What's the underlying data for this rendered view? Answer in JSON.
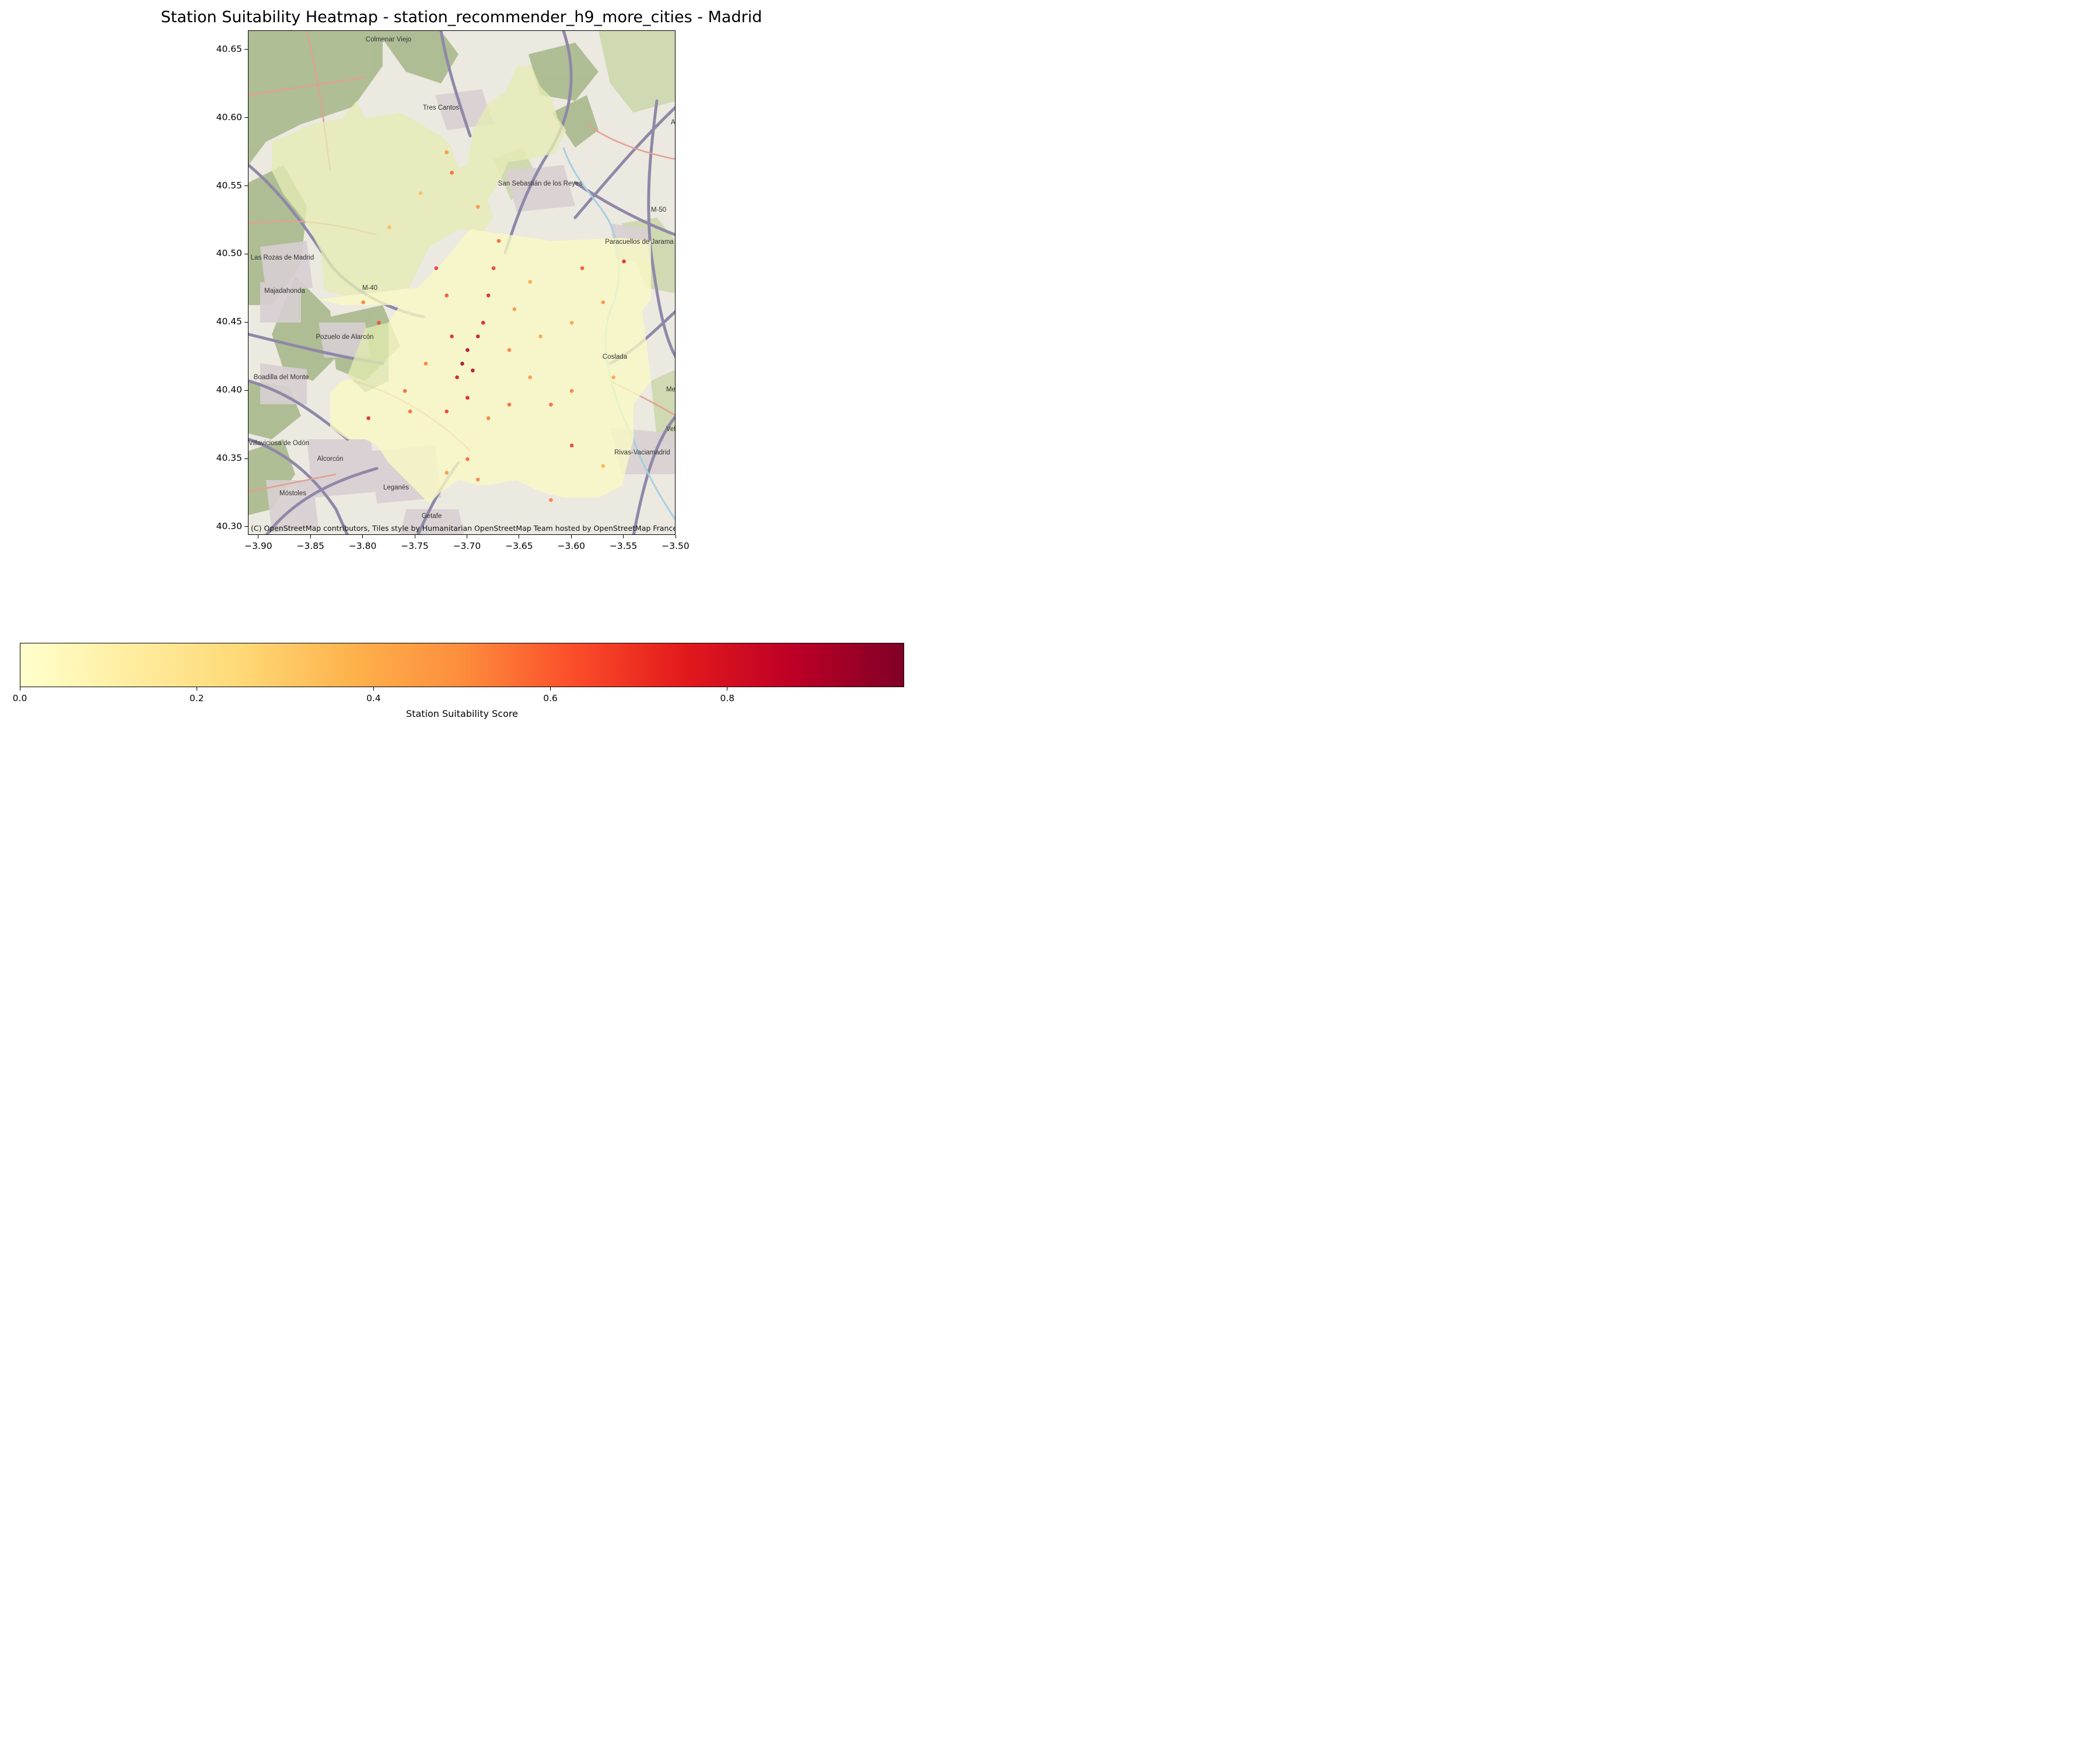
{
  "title": "Station Suitability Heatmap - station_recommender_h9_more_cities - Madrid",
  "map": {
    "attribution": "(C) OpenStreetMap contributors, Tiles style by Humanitarian OpenStreetMap Team hosted by OpenStreetMap France",
    "x_ticks": [
      "−3.90",
      "−3.85",
      "−3.80",
      "−3.75",
      "−3.70",
      "−3.65",
      "−3.60",
      "−3.55",
      "−3.50"
    ],
    "y_ticks": [
      "40.65",
      "40.60",
      "40.55",
      "40.50",
      "40.45",
      "40.40",
      "40.35",
      "40.30"
    ],
    "place_labels": [
      "Colmenar Viejo",
      "Tres Cantos",
      "Alg",
      "San Sebastián de los Reyes",
      "M-50",
      "Paracuellos de Jarama",
      "Las Rozas de Madrid",
      "Majadahonda",
      "M-40",
      "Pozuelo de Alarcón",
      "Coslada",
      "Boadilla del Monte",
      "Me del",
      "Villaviciosa de Odón",
      "Alcorcón",
      "Leganés",
      "Móstoles",
      "Getafe",
      "Rivas-Vaciamadrid",
      "Vel"
    ]
  },
  "chart_data": {
    "type": "heatmap",
    "title": "Station Suitability Heatmap - station_recommender_h9_more_cities - Madrid",
    "x_range": [
      -3.91,
      -3.5
    ],
    "y_range": [
      40.294,
      40.664
    ],
    "colormap": "YlOrRd",
    "colorbar": {
      "label": "Station Suitability Score",
      "range": [
        0.0,
        1.0
      ],
      "ticks": [
        "0.0",
        "0.2",
        "0.4",
        "0.6",
        "0.8"
      ]
    },
    "scored_cells": [
      {
        "lon": -3.705,
        "lat": 40.42,
        "score": 0.95
      },
      {
        "lon": -3.7,
        "lat": 40.43,
        "score": 0.92
      },
      {
        "lon": -3.695,
        "lat": 40.415,
        "score": 0.9
      },
      {
        "lon": -3.69,
        "lat": 40.44,
        "score": 0.85
      },
      {
        "lon": -3.685,
        "lat": 40.45,
        "score": 0.8
      },
      {
        "lon": -3.71,
        "lat": 40.41,
        "score": 0.82
      },
      {
        "lon": -3.715,
        "lat": 40.44,
        "score": 0.75
      },
      {
        "lon": -3.68,
        "lat": 40.47,
        "score": 0.78
      },
      {
        "lon": -3.72,
        "lat": 40.47,
        "score": 0.65
      },
      {
        "lon": -3.675,
        "lat": 40.49,
        "score": 0.7
      },
      {
        "lon": -3.7,
        "lat": 40.395,
        "score": 0.8
      },
      {
        "lon": -3.72,
        "lat": 40.385,
        "score": 0.7
      },
      {
        "lon": -3.755,
        "lat": 40.385,
        "score": 0.6
      },
      {
        "lon": -3.795,
        "lat": 40.38,
        "score": 0.75
      },
      {
        "lon": -3.66,
        "lat": 40.43,
        "score": 0.55
      },
      {
        "lon": -3.64,
        "lat": 40.41,
        "score": 0.5
      },
      {
        "lon": -3.62,
        "lat": 40.39,
        "score": 0.6
      },
      {
        "lon": -3.6,
        "lat": 40.36,
        "score": 0.7
      },
      {
        "lon": -3.6,
        "lat": 40.4,
        "score": 0.55
      },
      {
        "lon": -3.63,
        "lat": 40.44,
        "score": 0.45
      },
      {
        "lon": -3.59,
        "lat": 40.49,
        "score": 0.65
      },
      {
        "lon": -3.55,
        "lat": 40.495,
        "score": 0.75
      },
      {
        "lon": -3.57,
        "lat": 40.465,
        "score": 0.5
      },
      {
        "lon": -3.6,
        "lat": 40.45,
        "score": 0.45
      },
      {
        "lon": -3.7,
        "lat": 40.35,
        "score": 0.6
      },
      {
        "lon": -3.69,
        "lat": 40.335,
        "score": 0.55
      },
      {
        "lon": -3.72,
        "lat": 40.34,
        "score": 0.5
      },
      {
        "lon": -3.785,
        "lat": 40.45,
        "score": 0.65
      },
      {
        "lon": -3.8,
        "lat": 40.465,
        "score": 0.55
      },
      {
        "lon": -3.72,
        "lat": 40.575,
        "score": 0.5
      },
      {
        "lon": -3.715,
        "lat": 40.56,
        "score": 0.6
      },
      {
        "lon": -3.69,
        "lat": 40.535,
        "score": 0.5
      },
      {
        "lon": -3.67,
        "lat": 40.51,
        "score": 0.6
      },
      {
        "lon": -3.62,
        "lat": 40.32,
        "score": 0.55
      },
      {
        "lon": -3.56,
        "lat": 40.41,
        "score": 0.45
      },
      {
        "lon": -3.57,
        "lat": 40.345,
        "score": 0.4
      },
      {
        "lon": -3.73,
        "lat": 40.49,
        "score": 0.7
      },
      {
        "lon": -3.74,
        "lat": 40.42,
        "score": 0.55
      },
      {
        "lon": -3.76,
        "lat": 40.4,
        "score": 0.6
      },
      {
        "lon": -3.68,
        "lat": 40.38,
        "score": 0.55
      },
      {
        "lon": -3.66,
        "lat": 40.39,
        "score": 0.6
      },
      {
        "lon": -3.655,
        "lat": 40.46,
        "score": 0.5
      },
      {
        "lon": -3.64,
        "lat": 40.48,
        "score": 0.45
      },
      {
        "lon": -3.745,
        "lat": 40.545,
        "score": 0.35
      },
      {
        "lon": -3.775,
        "lat": 40.52,
        "score": 0.35
      }
    ]
  }
}
